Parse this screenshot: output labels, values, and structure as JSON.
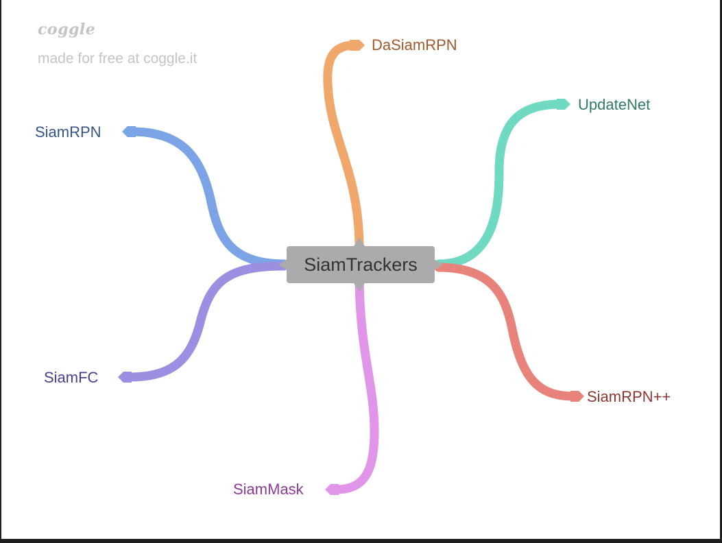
{
  "watermark": {
    "logo": "coggle",
    "tagline": "made for free at coggle.it"
  },
  "center": {
    "label": "SiamTrackers"
  },
  "branches": [
    {
      "label": "DaSiamRPN",
      "color": "#f0a76c",
      "text_color": "#a0592b"
    },
    {
      "label": "UpdateNet",
      "color": "#6fd9c1",
      "text_color": "#2f7a68"
    },
    {
      "label": "SiamRPN",
      "color": "#7ba3e6",
      "text_color": "#35558a"
    },
    {
      "label": "SiamFC",
      "color": "#9a8fe0",
      "text_color": "#4a3f8c"
    },
    {
      "label": "SiamMask",
      "color": "#e095e8",
      "text_color": "#8c3a96"
    },
    {
      "label": "SiamRPN++",
      "color": "#e8837b",
      "text_color": "#8c3630"
    }
  ]
}
